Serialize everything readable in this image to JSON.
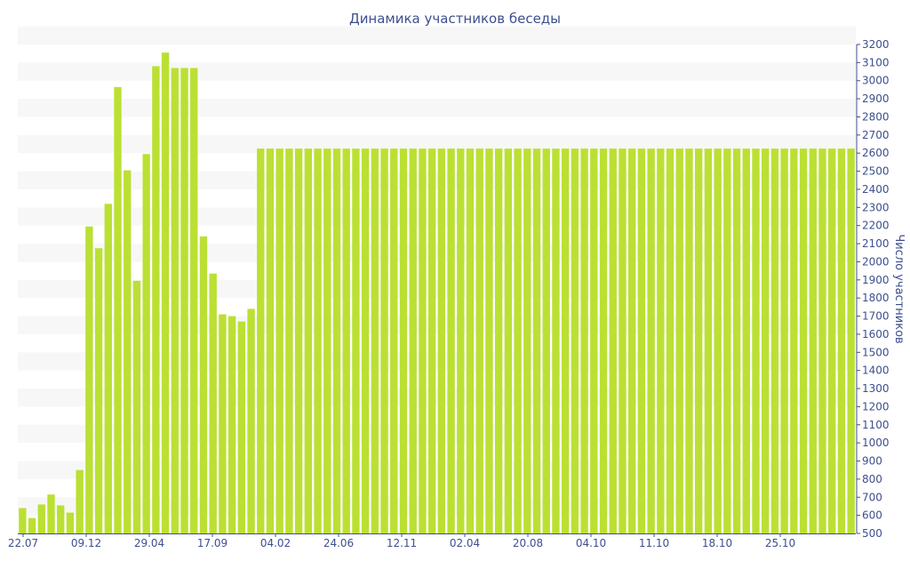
{
  "chart_data": {
    "type": "bar",
    "title": "Динамика участников беседы",
    "xlabel": "",
    "ylabel": "Число участников",
    "ylim": [
      500,
      3200
    ],
    "y_ticks": [
      500,
      600,
      700,
      800,
      900,
      1000,
      1100,
      1200,
      1300,
      1400,
      1500,
      1600,
      1700,
      1800,
      1900,
      2000,
      2100,
      2200,
      2300,
      2400,
      2500,
      2600,
      2700,
      2800,
      2900,
      3000,
      3100,
      3200
    ],
    "x_tick_labels": [
      "22.07",
      "09.12",
      "29.04",
      "17.09",
      "04.02",
      "24.06",
      "12.11",
      "02.04",
      "20.08",
      "04.10",
      "11.10",
      "18.10",
      "25.10"
    ],
    "values": [
      640,
      585,
      660,
      715,
      655,
      615,
      850,
      2195,
      2075,
      2320,
      2965,
      2505,
      1895,
      2595,
      3080,
      3155,
      3070,
      3070,
      3070,
      2140,
      1935,
      1710,
      1700,
      1670,
      1740,
      2625,
      2625,
      2625,
      2625,
      2625,
      2625,
      2625,
      2625,
      2625,
      2625,
      2625,
      2625,
      2625,
      2625,
      2625,
      2625,
      2625,
      2625,
      2625,
      2625,
      2625,
      2625,
      2625,
      2625,
      2625,
      2625,
      2625,
      2625,
      2625,
      2625,
      2625,
      2625,
      2625,
      2625,
      2625,
      2625,
      2625,
      2625,
      2625,
      2625,
      2625,
      2625,
      2625,
      2625,
      2625,
      2625,
      2625,
      2625,
      2625,
      2625,
      2625,
      2625,
      2625,
      2625,
      2625,
      2625,
      2625,
      2625,
      2625,
      2625,
      2625,
      2625,
      2625
    ],
    "grid": "horizontal bands",
    "bar_color": "#bbe033",
    "band_color": "#f7f7f7",
    "text_color": "#3d4f8f",
    "axis_position": "right"
  }
}
